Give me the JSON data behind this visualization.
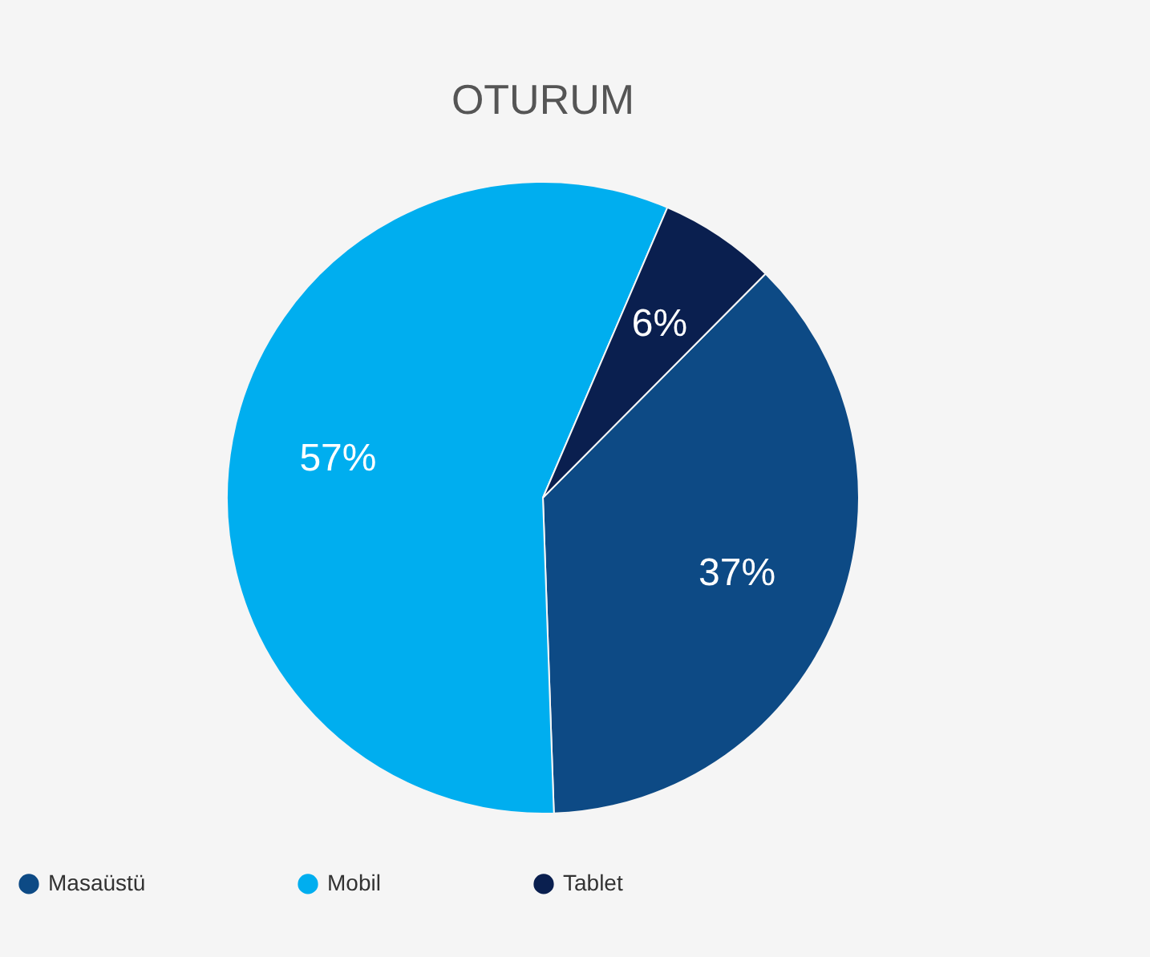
{
  "chart_data": {
    "type": "pie",
    "title": "OTURUM",
    "categories": [
      "Masaüstü",
      "Mobil",
      "Tablet"
    ],
    "values": [
      37,
      57,
      6
    ],
    "colors": [
      "#0d4a85",
      "#00aeef",
      "#0a1f4f"
    ],
    "value_labels": [
      "37%",
      "57%",
      "6%"
    ],
    "legend": "bottom"
  }
}
